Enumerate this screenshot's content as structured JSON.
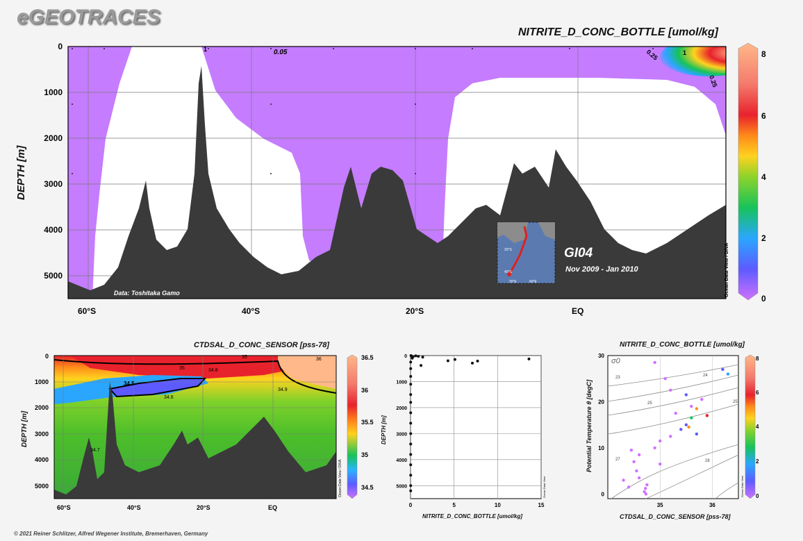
{
  "brand": "eGEOTRACES",
  "footer": "© 2021 Reiner Schlitzer, Alfred Wegener Institute, Bremerhaven, Germany",
  "section_main": {
    "title": "NITRITE_D_CONC_BOTTLE [umol/kg]",
    "ylabel": "DEPTH [m]",
    "y_ticks": [
      "0",
      "1000",
      "2000",
      "3000",
      "4000",
      "5000"
    ],
    "x_ticks": [
      "60°S",
      "40°S",
      "20°S",
      "EQ"
    ],
    "credit": "Data: Toshitaka Gamo",
    "cruise": "GI04",
    "period": "Nov 2009 - Jan 2010",
    "odv_label": "Ocean Data View / DIVA",
    "contour_labels": [
      "0.05",
      "1",
      "0.25",
      "1",
      "0.25"
    ],
    "colorbar": {
      "min": 0,
      "max": 8,
      "ticks": [
        "0",
        "2",
        "4",
        "6",
        "8"
      ]
    },
    "map_ticks": [
      "20°S",
      "40°S",
      "20°E",
      "60°E"
    ]
  },
  "section_sal": {
    "title": "CTDSAL_D_CONC_SENSOR [pss-78]",
    "ylabel": "DEPTH [m]",
    "y_ticks": [
      "0",
      "1000",
      "2000",
      "3000",
      "4000",
      "5000"
    ],
    "x_ticks": [
      "60°S",
      "40°S",
      "20°S",
      "EQ"
    ],
    "odv_label": "Ocean Data View / DIVA",
    "contour_labels": [
      "34.5",
      "34.6",
      "34.8",
      "34.9",
      "35",
      "34.7",
      "36",
      "35"
    ],
    "colorbar": {
      "min": 34.5,
      "max": 36.5,
      "ticks": [
        "34.5",
        "35",
        "35.5",
        "36",
        "36.5"
      ]
    }
  },
  "colors": {
    "ocean_section": "#c57cff",
    "bathymetry": "#3a3a3a",
    "grid": "#7a7a7a"
  },
  "chart_data": [
    {
      "type": "scatter",
      "title": "",
      "xlabel": "NITRITE_D_CONC_BOTTLE [umol/kg]",
      "ylabel": "DEPTH [m]",
      "xlim": [
        0,
        15
      ],
      "ylim": [
        5500,
        0
      ],
      "x_ticks": [
        "0",
        "5",
        "10",
        "15"
      ],
      "y_ticks": [
        "0",
        "1000",
        "2000",
        "3000",
        "4000",
        "5000"
      ],
      "odv_label": "Ocean Data View",
      "points": [
        [
          0.05,
          0
        ],
        [
          0.1,
          20
        ],
        [
          0.3,
          40
        ],
        [
          0.6,
          10
        ],
        [
          0.9,
          30
        ],
        [
          1.4,
          60
        ],
        [
          0.2,
          100
        ],
        [
          1.2,
          380
        ],
        [
          4.3,
          200
        ],
        [
          5.1,
          150
        ],
        [
          7.1,
          290
        ],
        [
          7.7,
          210
        ],
        [
          13.6,
          130
        ],
        [
          0.02,
          250
        ],
        [
          0.02,
          500
        ],
        [
          0.02,
          800
        ],
        [
          0.02,
          1100
        ],
        [
          0.02,
          1500
        ],
        [
          0.02,
          1800
        ],
        [
          0.02,
          2200
        ],
        [
          0.02,
          2600
        ],
        [
          0.02,
          3000
        ],
        [
          0.02,
          3400
        ],
        [
          0.02,
          3800
        ],
        [
          0.02,
          4200
        ],
        [
          0.02,
          4600
        ],
        [
          0.02,
          5000
        ],
        [
          0.02,
          5200
        ]
      ]
    },
    {
      "type": "scatter",
      "title": "NITRITE_D_CONC_BOTTLE [umol/kg]",
      "xlabel": "CTDSAL_D_CONC_SENSOR [pss-78]",
      "ylabel": "Potential Temperature θ [degC]",
      "xlim": [
        34.0,
        36.5
      ],
      "ylim": [
        -1,
        30
      ],
      "x_ticks": [
        "35",
        "36"
      ],
      "y_ticks": [
        "0",
        "10",
        "20",
        "30"
      ],
      "isopycnal_symbol": "σ0",
      "isopycnal_labels": [
        "23",
        "24",
        "25",
        "25",
        "27",
        "28"
      ],
      "odv_label": "Ocean Data View",
      "colorbar": {
        "min": 0,
        "max": 8,
        "ticks": [
          "0",
          "2",
          "4",
          "6",
          "8"
        ]
      },
      "points": [
        [
          34.7,
          0.5,
          0.2
        ],
        [
          34.72,
          1.2,
          0.1
        ],
        [
          34.75,
          2.0,
          0.2
        ],
        [
          34.73,
          0.0,
          0.1
        ],
        [
          34.6,
          3.5,
          0.3
        ],
        [
          34.55,
          5.0,
          0.4
        ],
        [
          34.5,
          7.0,
          0.3
        ],
        [
          34.6,
          8.5,
          0.5
        ],
        [
          34.9,
          10.0,
          0.6
        ],
        [
          35.0,
          11.5,
          0.5
        ],
        [
          35.2,
          12.5,
          0.8
        ],
        [
          35.4,
          14.0,
          1.0
        ],
        [
          35.5,
          15.0,
          1.2
        ],
        [
          35.6,
          16.5,
          3.2
        ],
        [
          35.55,
          14.5,
          5.5
        ],
        [
          35.7,
          13.0,
          1.5
        ],
        [
          35.3,
          17.5,
          0.4
        ],
        [
          35.6,
          19.0,
          0.6
        ],
        [
          35.8,
          20.5,
          0.8
        ],
        [
          35.5,
          21.5,
          1.1
        ],
        [
          35.2,
          22.5,
          0.9
        ],
        [
          35.1,
          25.0,
          0.5
        ],
        [
          36.2,
          27.0,
          1.5
        ],
        [
          36.3,
          26.0,
          2.0
        ],
        [
          34.9,
          28.5,
          0.3
        ],
        [
          35.7,
          18.5,
          5.0
        ],
        [
          35.9,
          17.0,
          6.0
        ],
        [
          34.4,
          1.5,
          0.1
        ],
        [
          34.3,
          3.0,
          0.2
        ],
        [
          34.45,
          9.5,
          0.3
        ],
        [
          35.0,
          6.5,
          0.4
        ]
      ]
    }
  ]
}
